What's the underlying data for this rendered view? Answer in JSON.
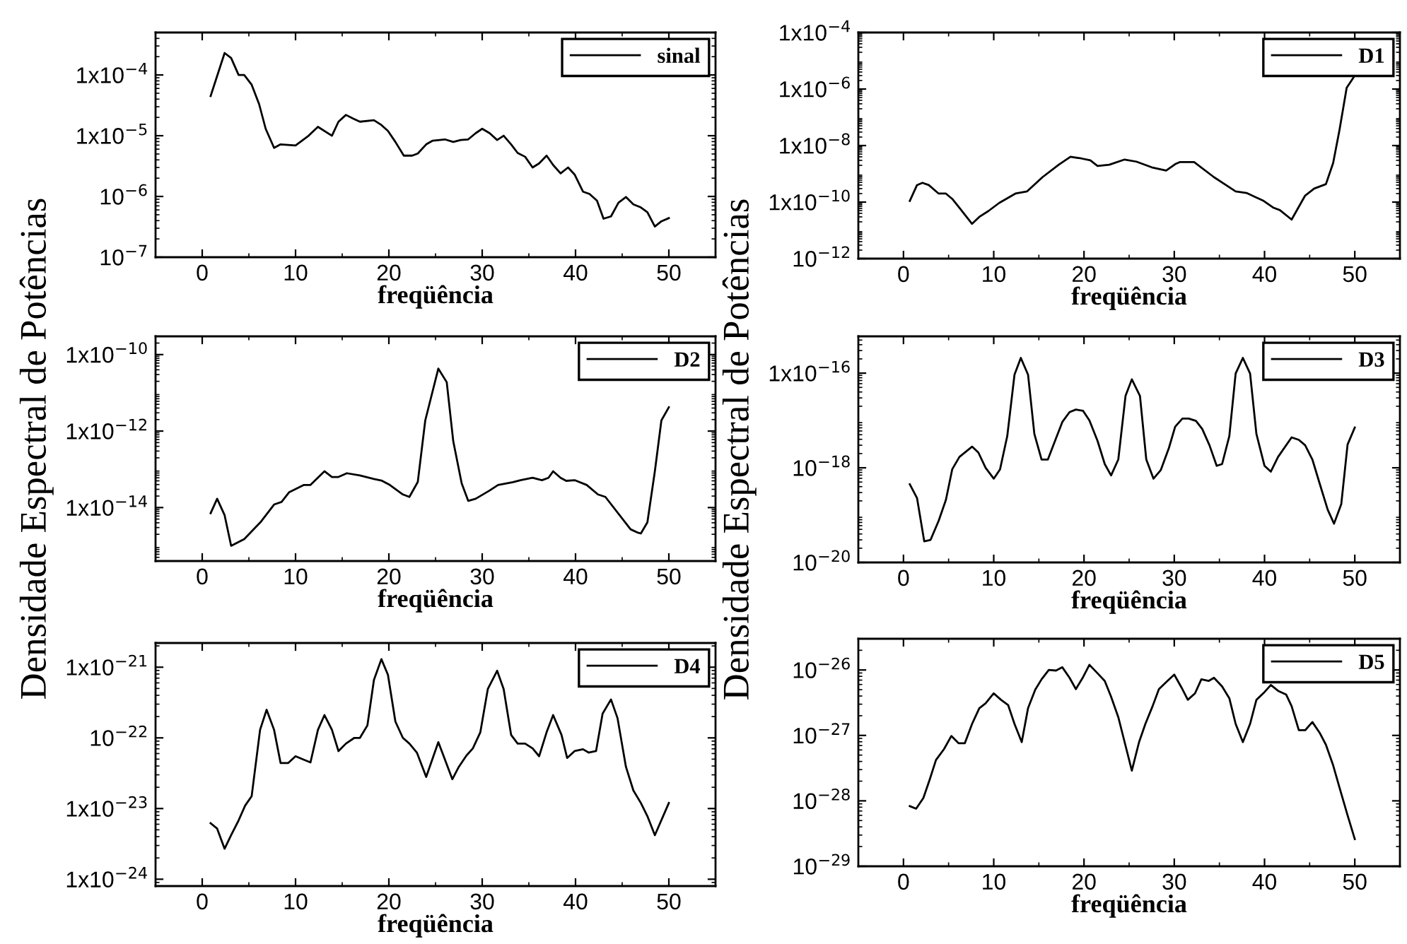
{
  "chart_data": [
    {
      "type": "line",
      "xlabel": "freqüência",
      "log": "y",
      "legend": "top right",
      "line_style": "solid",
      "xlim": [
        -5,
        55
      ],
      "xticks": [
        0,
        10,
        20,
        30,
        40,
        50
      ],
      "ylim": [
        1e-07,
        0.0005
      ],
      "yticks": [
        {
          "value": 0.0001,
          "label": "1x10$^{−4}$"
        },
        {
          "value": 1e-05,
          "label": "1x10$^{−5}$"
        },
        {
          "value": 1e-06,
          "label": "10$^{−6}$"
        },
        {
          "value": 1e-07,
          "label": "10$^{−7}$"
        }
      ],
      "series": [
        {
          "name": "sinal",
          "color": "#000000",
          "x": [
            0.9,
            2.4,
            3.1,
            3.9,
            4.5,
            5.3,
            6.1,
            6.8,
            7.7,
            8.4,
            10,
            11.4,
            12.4,
            13.9,
            14.6,
            15.4,
            16.2,
            16.9,
            18.4,
            19.2,
            19.9,
            20.7,
            21.6,
            22.5,
            23.1,
            24,
            24.7,
            26,
            26.9,
            27.7,
            28.5,
            29.3,
            30,
            30.8,
            31.6,
            32.3,
            33.1,
            33.8,
            34.6,
            35.4,
            36.1,
            36.9,
            37.6,
            38.4,
            39.2,
            39.9,
            40.8,
            41.5,
            42.3,
            43,
            43.8,
            44.6,
            45.4,
            46.2,
            47,
            47.7,
            48.5,
            49.2,
            50
          ],
          "values": [
            4.5e-05,
            0.00023,
            0.00019,
            0.0001,
            0.0001,
            6.9e-05,
            3.3e-05,
            1.3e-05,
            6.3e-06,
            7.2e-06,
            6.9e-06,
            1e-05,
            1.4e-05,
            1e-05,
            1.7e-05,
            2.2e-05,
            1.9e-05,
            1.7e-05,
            1.8e-05,
            1.5e-05,
            1.2e-05,
            7.9e-06,
            4.7e-06,
            4.7e-06,
            5.1e-06,
            7.2e-06,
            8.3e-06,
            8.7e-06,
            7.9e-06,
            8.5e-06,
            8.7e-06,
            1.1e-05,
            1.3e-05,
            1.1e-05,
            8.5e-06,
            1e-05,
            7.2e-06,
            5.2e-06,
            4.5e-06,
            3e-06,
            3.5e-06,
            4.7e-06,
            3.3e-06,
            2.4e-06,
            3e-06,
            2.3e-06,
            1.2e-06,
            1.1e-06,
            8.5e-07,
            4.3e-07,
            4.7e-07,
            7.9e-07,
            9.8e-07,
            7.4e-07,
            6.6e-07,
            5.5e-07,
            3.2e-07,
            3.9e-07,
            4.4e-07
          ]
        }
      ]
    },
    {
      "type": "line",
      "xlabel": "freqüência",
      "log": "y",
      "legend": "top right",
      "line_style": "solid",
      "xlim": [
        -5,
        55
      ],
      "xticks": [
        0,
        10,
        20,
        30,
        40,
        50
      ],
      "ylim": [
        1e-12,
        0.0001
      ],
      "yticks": [
        {
          "value": 0.0001,
          "label": "1x10$^{−4}$"
        },
        {
          "value": 1e-06,
          "label": "1x10$^{−6}$"
        },
        {
          "value": 1e-08,
          "label": "1x10$^{−8}$"
        },
        {
          "value": 1e-10,
          "label": "1x10$^{−10}$"
        },
        {
          "value": 1e-12,
          "label": "10$^{−12}$"
        }
      ],
      "series": [
        {
          "name": "D1",
          "color": "#000000",
          "x": [
            0.7,
            1.5,
            2.1,
            2.8,
            3.9,
            4.7,
            5.4,
            6.2,
            7.6,
            8.4,
            9.4,
            10.6,
            12.4,
            13.7,
            15.4,
            17.2,
            18.5,
            19.7,
            20.7,
            21.5,
            22.8,
            24.5,
            25.8,
            27.5,
            29.1,
            30.1,
            30.6,
            32.2,
            34.4,
            36.8,
            38,
            39.9,
            41,
            41.7,
            43,
            44.5,
            45.5,
            46.8,
            47.6,
            48.3,
            49.1,
            50
          ],
          "values": [
            1.1e-10,
            4e-10,
            4.8e-10,
            4e-10,
            2e-10,
            2e-10,
            1.3e-10,
            6.3e-11,
            1.7e-11,
            3e-11,
            4.8e-11,
            9.3e-11,
            2e-10,
            2.4e-10,
            7.6e-10,
            2.1e-09,
            4e-09,
            3.5e-09,
            3e-09,
            1.9e-09,
            2.1e-09,
            3.2e-09,
            2.7e-09,
            1.7e-09,
            1.3e-09,
            2.2e-09,
            2.6e-09,
            2.6e-09,
            7.6e-10,
            2.4e-10,
            2.1e-10,
            1.1e-10,
            6.3e-11,
            5.2e-11,
            2.4e-11,
            1.7e-10,
            3e-10,
            4.3e-10,
            2.4e-09,
            3.5e-08,
            1.1e-06,
            3e-06
          ]
        }
      ]
    },
    {
      "type": "line",
      "xlabel": "freqüência",
      "ylabel": "Densidade Espectral de Potências",
      "log": "y",
      "legend": "top right",
      "line_style": "solid",
      "xlim": [
        -5,
        55
      ],
      "xticks": [
        0,
        10,
        20,
        30,
        40,
        50
      ],
      "ylim": [
        4e-16,
        3e-10
      ],
      "yticks": [
        {
          "value": 1e-10,
          "label": "1x10$^{−10}$"
        },
        {
          "value": 1e-12,
          "label": "1x10$^{−12}$"
        },
        {
          "value": 1e-14,
          "label": "1x10$^{−14}$"
        }
      ],
      "series": [
        {
          "name": "D2",
          "color": "#000000",
          "x": [
            0.9,
            1.6,
            2.4,
            3.1,
            4.5,
            6.3,
            7.7,
            8.5,
            9.3,
            10.9,
            11.6,
            13.1,
            13.9,
            14.6,
            15.5,
            16.9,
            18.4,
            19.2,
            20.1,
            21.5,
            22.2,
            23.1,
            23.9,
            25.3,
            26.2,
            26.9,
            27.8,
            28.5,
            29.3,
            30.8,
            31.7,
            32.6,
            33.3,
            34.1,
            35.4,
            36.4,
            37.1,
            37.6,
            38.4,
            39,
            39.9,
            41.2,
            42.4,
            43.2,
            45.9,
            46.7,
            47,
            47.7,
            48.5,
            49.2,
            50
          ],
          "values": [
            7.1e-15,
            1.7e-14,
            6.3e-15,
            1e-15,
            1.5e-15,
            4.3e-15,
            1.2e-14,
            1.4e-14,
            2.5e-14,
            3.9e-14,
            3.9e-14,
            8.9e-14,
            6.3e-14,
            6.3e-14,
            7.9e-14,
            6.9e-14,
            5.6e-14,
            5.1e-14,
            3.9e-14,
            2.2e-14,
            1.9e-14,
            4.7e-14,
            1.9e-12,
            4.3e-11,
            1.9e-11,
            5.4e-13,
            4.3e-14,
            1.5e-14,
            1.7e-14,
            2.8e-14,
            3.9e-14,
            4.3e-14,
            4.6e-14,
            5.2e-14,
            6e-14,
            5.2e-14,
            6e-14,
            8.9e-14,
            6e-14,
            5e-14,
            5.2e-14,
            3.9e-14,
            2.2e-14,
            1.9e-14,
            2.7e-15,
            2.2e-15,
            2.1e-15,
            4.1e-15,
            8.9e-14,
            1.9e-12,
            4.2e-12
          ]
        }
      ]
    },
    {
      "type": "line",
      "xlabel": "freqüência",
      "ylabel": "Densidade Espectral de Potências",
      "log": "y",
      "legend": "top right",
      "line_style": "solid",
      "xlim": [
        -5,
        55
      ],
      "xticks": [
        0,
        10,
        20,
        30,
        40,
        50
      ],
      "ylim": [
        1e-20,
        6e-16
      ],
      "yticks": [
        {
          "value": 1e-16,
          "label": "1x10$^{−16}$"
        },
        {
          "value": 1e-18,
          "label": "10$^{−18}$"
        },
        {
          "value": 1e-20,
          "label": "10$^{−20}$"
        }
      ],
      "series": [
        {
          "name": "D3",
          "color": "#000000",
          "x": [
            0.7,
            1.5,
            2.3,
            3.0,
            3.9,
            4.7,
            5.4,
            6.2,
            7.6,
            8.3,
            9.1,
            10,
            10.7,
            11.5,
            12.3,
            13,
            13.8,
            14.5,
            15.3,
            16,
            16.9,
            17.6,
            18.4,
            19.1,
            19.9,
            20.6,
            21.5,
            22.3,
            23,
            23.8,
            24.6,
            25.3,
            26.2,
            26.9,
            27.7,
            28.5,
            29.4,
            30.1,
            30.9,
            31.6,
            32.4,
            33.1,
            33.9,
            34.7,
            35.3,
            36.1,
            36.8,
            37.6,
            38.4,
            39.1,
            40,
            40.7,
            41.5,
            43,
            43.8,
            44.5,
            45.3,
            46.1,
            47,
            47.7,
            48.5,
            49.2,
            50
          ],
          "values": [
            4.5e-19,
            2.3e-19,
            2.8e-20,
            3e-20,
            7.6e-20,
            2.1e-19,
            9.3e-19,
            1.7e-18,
            2.8e-18,
            2.1e-18,
            1e-18,
            5.9e-19,
            9.3e-19,
            4.7e-18,
            9.3e-17,
            2.1e-16,
            9.3e-17,
            5.2e-18,
            1.5e-18,
            1.5e-18,
            4.2e-18,
            9.3e-18,
            1.5e-17,
            1.7e-17,
            1.6e-17,
            1e-17,
            3.7e-18,
            1.2e-18,
            6.9e-19,
            1.5e-18,
            3.3e-17,
            7.4e-17,
            3.3e-17,
            1.5e-18,
            5.9e-19,
            8.9e-19,
            2.6e-18,
            7.4e-18,
            1.1e-17,
            1.1e-17,
            9.8e-18,
            6.6e-18,
            3e-18,
            1.1e-18,
            1.2e-18,
            4.7e-18,
            9.8e-17,
            2.1e-16,
            9.8e-17,
            5.2e-18,
            1.1e-18,
            8.3e-19,
            1.7e-18,
            4.4e-18,
            3.9e-18,
            3e-18,
            1.5e-18,
            4.7e-19,
            1.3e-19,
            6.6e-20,
            1.7e-19,
            3.1e-18,
            7.1e-18
          ]
        }
      ]
    },
    {
      "type": "line",
      "xlabel": "freqüência",
      "log": "y",
      "legend": "top right",
      "line_style": "solid",
      "xlim": [
        -5,
        55
      ],
      "xticks": [
        0,
        10,
        20,
        30,
        40,
        50
      ],
      "ylim": [
        8e-25,
        2.2e-21
      ],
      "yticks": [
        {
          "value": 1e-21,
          "label": "1x10$^{−21}$"
        },
        {
          "value": 1e-22,
          "label": "10$^{−22}$"
        },
        {
          "value": 1e-23,
          "label": "1x10$^{−23}$"
        },
        {
          "value": 1e-24,
          "label": "1x10$^{−24}$"
        }
      ],
      "series": [
        {
          "name": "D4",
          "color": "#000000",
          "x": [
            0.9,
            1.6,
            2.4,
            3.1,
            3.9,
            4.6,
            5.3,
            6.2,
            6.9,
            7.7,
            8.4,
            9.2,
            10,
            10.9,
            11.6,
            12.4,
            13.1,
            13.9,
            14.6,
            15.4,
            16.3,
            16.9,
            17.7,
            18.4,
            19.2,
            19.9,
            20.7,
            21.5,
            22.2,
            23,
            24,
            25.3,
            26.8,
            27.5,
            28.3,
            29,
            29.8,
            30.6,
            31.6,
            32.3,
            33.1,
            33.8,
            34.6,
            35.4,
            36.1,
            36.9,
            37.6,
            38.5,
            39.1,
            39.9,
            40.8,
            41.4,
            42.2,
            42.9,
            43.8,
            44.5,
            45.4,
            46.2,
            47,
            47.7,
            48.5,
            50
          ],
          "values": [
            6.2e-24,
            5.2e-24,
            2.7e-24,
            4.2e-24,
            6.8e-24,
            1.1e-23,
            1.5e-23,
            1.3e-22,
            2.5e-22,
            1.3e-22,
            4.4e-23,
            4.4e-23,
            5.5e-23,
            4.9e-23,
            4.5e-23,
            1.3e-22,
            2.1e-22,
            1.3e-22,
            6.5e-23,
            8.3e-23,
            1e-22,
            1e-22,
            1.5e-22,
            6.6e-22,
            1.3e-21,
            7.8e-22,
            1.7e-22,
            1e-22,
            8.3e-23,
            6.2e-23,
            2.8e-23,
            8.7e-23,
            2.6e-23,
            3.9e-23,
            5.6e-23,
            7.1e-23,
            1.2e-22,
            4.9e-22,
            8.9e-22,
            4.9e-22,
            1.1e-22,
            8.3e-23,
            8.3e-23,
            7.1e-23,
            5.5e-23,
            1.2e-22,
            2.1e-22,
            1.1e-22,
            5.2e-23,
            6.5e-23,
            6.9e-23,
            6.2e-23,
            6.5e-23,
            2.2e-22,
            3.5e-22,
            1.9e-22,
            3.9e-23,
            1.8e-23,
            1.2e-23,
            7.8e-24,
            4.2e-24,
            1.2e-23
          ]
        }
      ]
    },
    {
      "type": "line",
      "xlabel": "freqüência",
      "log": "y",
      "legend": "top right",
      "line_style": "solid",
      "xlim": [
        -5,
        55
      ],
      "xticks": [
        0,
        10,
        20,
        30,
        40,
        50
      ],
      "ylim": [
        1e-29,
        3e-26
      ],
      "yticks": [
        {
          "value": 1e-26,
          "label": "10$^{−26}$"
        },
        {
          "value": 1e-27,
          "label": "10$^{−27}$"
        },
        {
          "value": 1e-28,
          "label": "10$^{−28}$"
        },
        {
          "value": 1e-29,
          "label": "10$^{−29}$"
        }
      ],
      "series": [
        {
          "name": "D5",
          "color": "#000000",
          "x": [
            0.7,
            1.4,
            2.2,
            2.9,
            3.6,
            4.5,
            5.3,
            6.1,
            6.8,
            7.6,
            8.4,
            9.1,
            10,
            10.8,
            11.6,
            12.3,
            13.1,
            13.8,
            14.6,
            15.3,
            16.1,
            16.9,
            17.6,
            18.4,
            19.1,
            19.9,
            20.6,
            21.5,
            22.3,
            23,
            23.8,
            24.5,
            25.3,
            26.1,
            26.8,
            27.6,
            28.3,
            29.3,
            30,
            30.8,
            31.5,
            32.3,
            33,
            33.8,
            34.4,
            35.3,
            36.1,
            36.8,
            37.6,
            38.4,
            39.1,
            40,
            40.7,
            41.5,
            42.4,
            43,
            43.8,
            44.5,
            45.3,
            46.1,
            46.8,
            47.6,
            48.3,
            49.2,
            50
          ],
          "values": [
            8.3e-29,
            7.6e-29,
            1.1e-28,
            2.1e-28,
            4.2e-28,
            6.2e-28,
            9.8e-28,
            7.6e-28,
            7.6e-28,
            1.5e-27,
            2.6e-27,
            3.1e-27,
            4.4e-27,
            3.5e-27,
            2.9e-27,
            1.5e-27,
            7.9e-28,
            2.6e-27,
            5e-27,
            7.2e-27,
            1e-26,
            9.8e-27,
            1.1e-26,
            7.6e-27,
            5.1e-27,
            7.8e-27,
            1.2e-26,
            8.9e-27,
            6.8e-27,
            3.9e-27,
            1.9e-27,
            7.9e-28,
            2.9e-28,
            7.9e-28,
            1.5e-27,
            2.8e-27,
            5.1e-27,
            6.9e-27,
            8.5e-27,
            5.4e-27,
            3.5e-27,
            4.4e-27,
            7.2e-27,
            6.8e-27,
            7.6e-27,
            5.6e-27,
            3.7e-27,
            1.5e-27,
            7.9e-28,
            1.5e-27,
            3.5e-27,
            4.6e-27,
            5.9e-27,
            4.8e-27,
            4.2e-27,
            2.8e-27,
            1.2e-27,
            1.2e-27,
            1.6e-27,
            1.1e-27,
            7.2e-28,
            3.5e-28,
            1.6e-28,
            6e-29,
            2.6e-29
          ]
        }
      ]
    }
  ]
}
